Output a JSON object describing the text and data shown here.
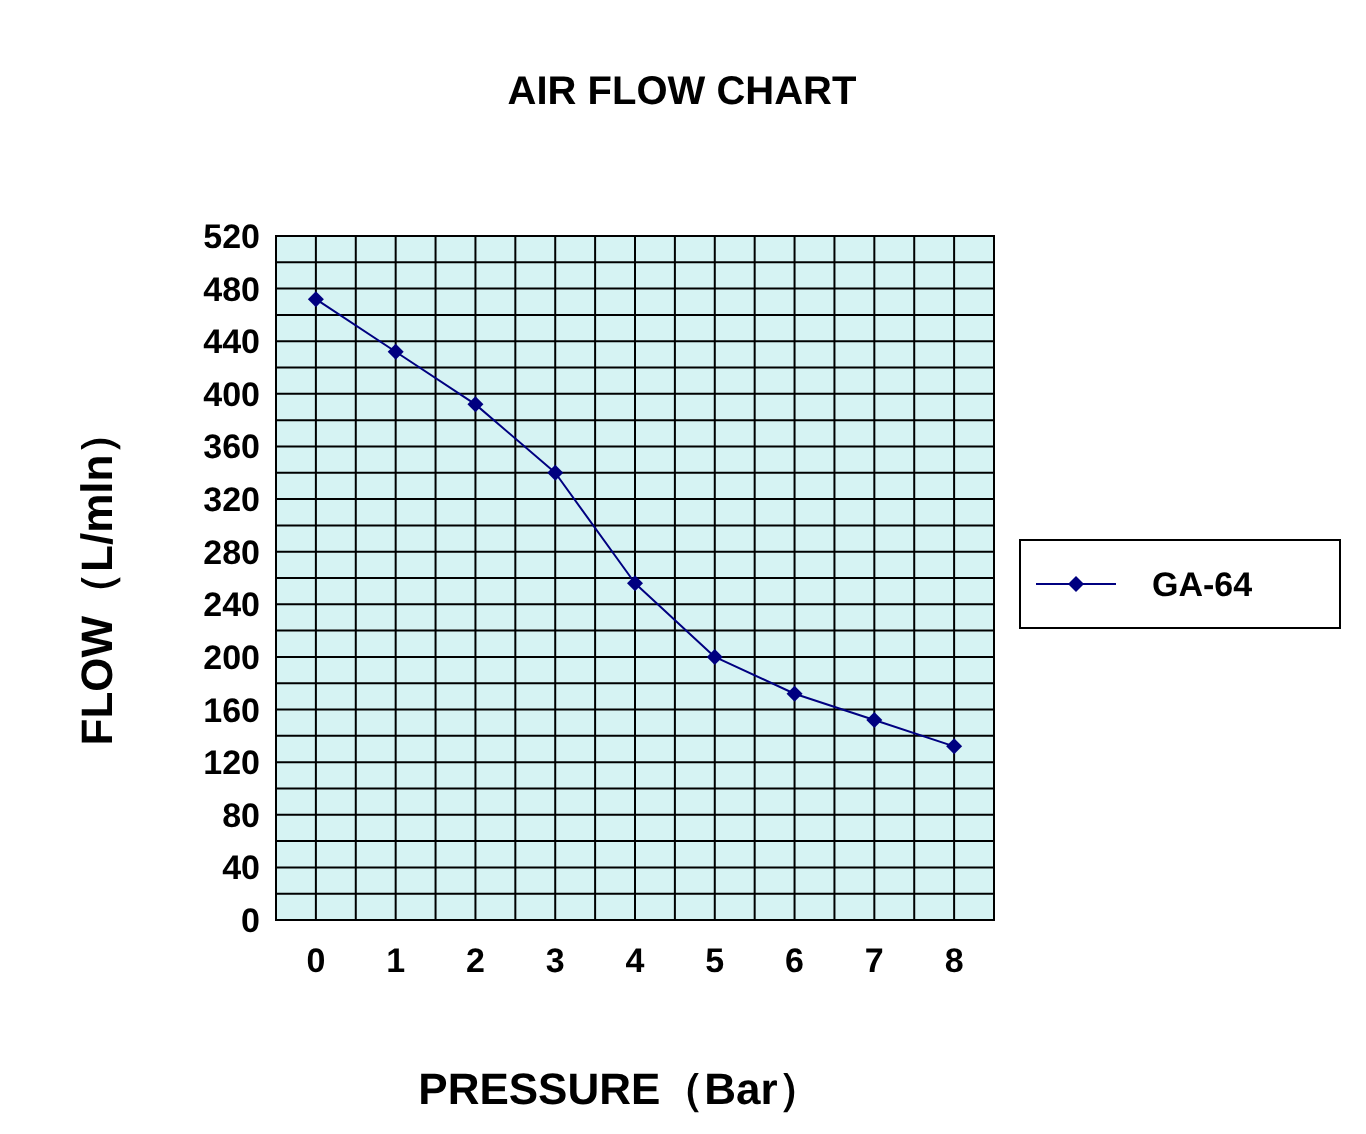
{
  "chart_data": {
    "type": "line",
    "title": "AIR FLOW CHART",
    "xlabel": "PRESSURE（Bar）",
    "ylabel": "FLOW（L/mln）",
    "x": [
      0,
      1,
      2,
      3,
      4,
      5,
      6,
      7,
      8
    ],
    "series": [
      {
        "name": "GA-64",
        "color": "#000080",
        "values": [
          472,
          432,
          392,
          340,
          256,
          200,
          172,
          152,
          132
        ]
      }
    ],
    "xlim": [
      -0.5,
      8.5
    ],
    "xticks": [
      {
        "value": -0.5,
        "label": null
      },
      0,
      {
        "value": 0.5,
        "label": null
      },
      1,
      {
        "value": 1.5,
        "label": null
      },
      2,
      {
        "value": 2.5,
        "label": null
      },
      3,
      {
        "value": 3.5,
        "label": null
      },
      4,
      {
        "value": 4.5,
        "label": null
      },
      5,
      {
        "value": 5.5,
        "label": null
      },
      6,
      {
        "value": 6.5,
        "label": null
      },
      7,
      {
        "value": 7.5,
        "label": null
      },
      8,
      {
        "value": 8.5,
        "label": null
      }
    ],
    "ylim": [
      0,
      520
    ],
    "yticks": [
      0,
      {
        "value": 20,
        "label": null
      },
      40,
      {
        "value": 60,
        "label": null
      },
      80,
      {
        "value": 100,
        "label": null
      },
      120,
      {
        "value": 140,
        "label": null
      },
      160,
      {
        "value": 180,
        "label": null
      },
      200,
      {
        "value": 220,
        "label": null
      },
      240,
      {
        "value": 260,
        "label": null
      },
      280,
      {
        "value": 300,
        "label": null
      },
      320,
      {
        "value": 340,
        "label": null
      },
      360,
      {
        "value": 380,
        "label": null
      },
      400,
      {
        "value": 420,
        "label": null
      },
      440,
      {
        "value": 460,
        "label": null
      },
      480,
      {
        "value": 500,
        "label": null
      },
      520
    ],
    "grid": true,
    "legend": "right",
    "marker": "diamond",
    "line_style": "solid"
  }
}
